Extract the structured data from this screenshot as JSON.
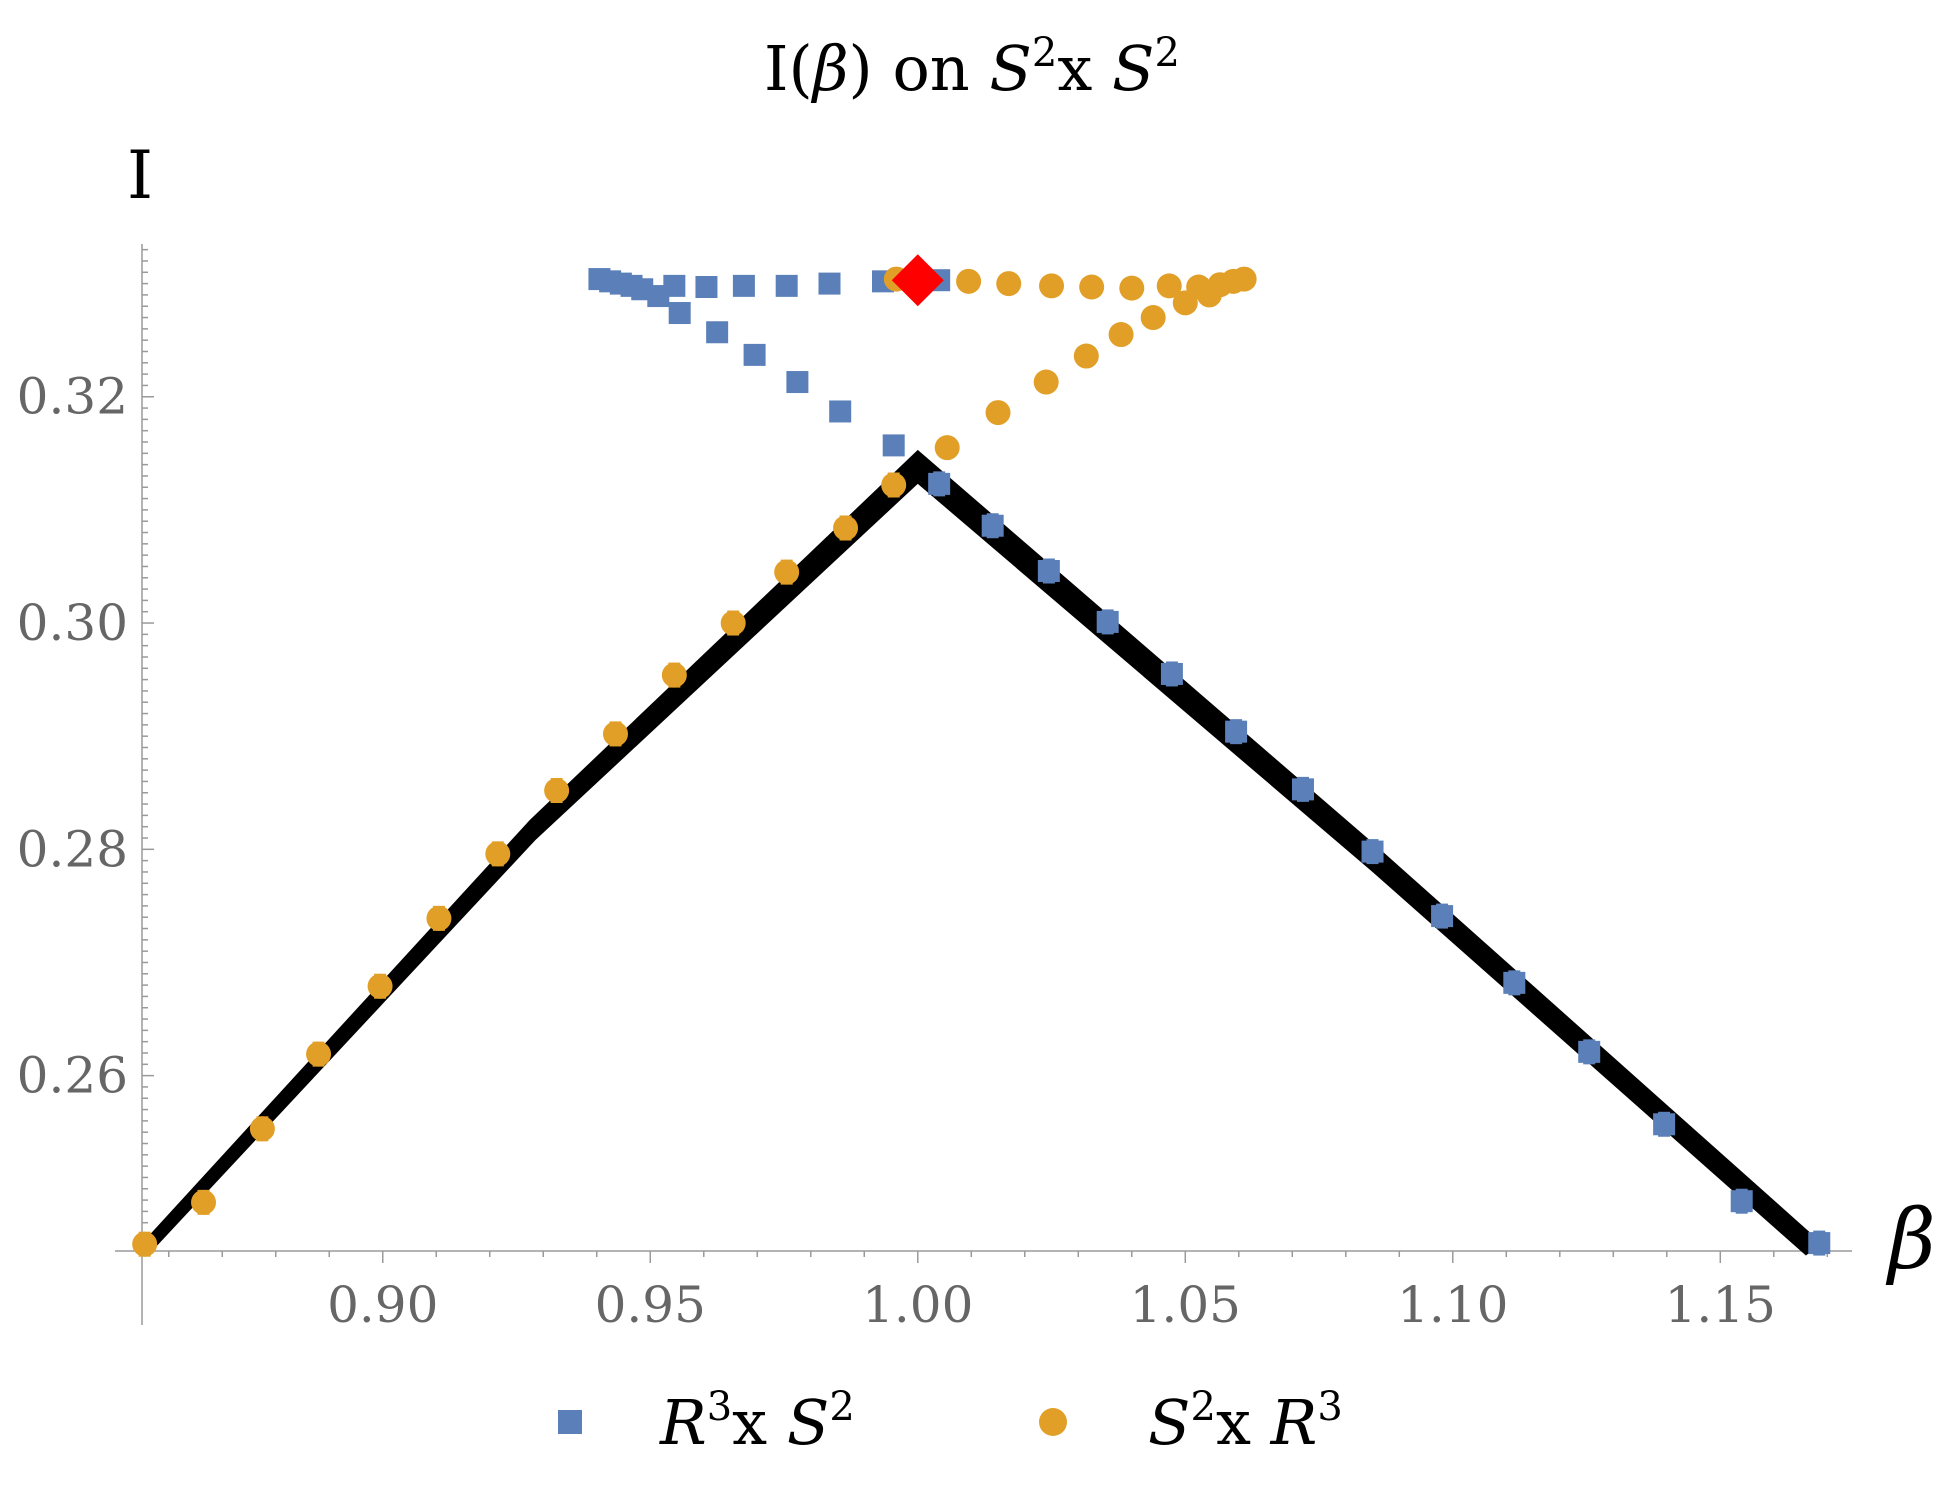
{
  "chart_data": {
    "type": "scatter",
    "title": {
      "prefix": "I(",
      "beta": "β",
      "mid": ") on ",
      "s1": "S",
      "sup1": "2",
      "x": "x ",
      "s2": "S",
      "sup2": "2"
    },
    "ylabel": "I",
    "xlabel": "β",
    "xlim": [
      0.855,
      1.172
    ],
    "ylim": [
      0.2445,
      0.3335
    ],
    "x_ticks": [
      "0.90",
      "0.95",
      "1.00",
      "1.05",
      "1.10",
      "1.15"
    ],
    "x_tick_values": [
      0.9,
      0.95,
      1.0,
      1.05,
      1.1,
      1.15
    ],
    "y_ticks": [
      "0.26",
      "0.28",
      "0.30",
      "0.32"
    ],
    "y_tick_values": [
      0.26,
      0.28,
      0.3,
      0.32
    ],
    "grid": false,
    "legend_position": "bottom",
    "colors": {
      "blue": "#5b80b9",
      "orange": "#e19f28",
      "red": "#ff0000",
      "curve": "#000000"
    },
    "series": [
      {
        "name": "R3 x S2",
        "legend": {
          "a": "R",
          "a_sup": "3",
          "x": "x ",
          "b": "S",
          "b_sup": "2"
        },
        "marker": "square",
        "color": "#5b80b9",
        "points": [
          {
            "x": 0.9405,
            "y": 0.3304
          },
          {
            "x": 0.9425,
            "y": 0.3302
          },
          {
            "x": 0.9445,
            "y": 0.33
          },
          {
            "x": 0.9465,
            "y": 0.3298
          },
          {
            "x": 0.9485,
            "y": 0.3295
          },
          {
            "x": 0.9515,
            "y": 0.3289
          },
          {
            "x": 0.9545,
            "y": 0.3298
          },
          {
            "x": 0.9555,
            "y": 0.3274
          },
          {
            "x": 0.9605,
            "y": 0.3297
          },
          {
            "x": 0.9625,
            "y": 0.3257
          },
          {
            "x": 0.9675,
            "y": 0.3298
          },
          {
            "x": 0.9695,
            "y": 0.3237
          },
          {
            "x": 0.9755,
            "y": 0.3298
          },
          {
            "x": 0.9775,
            "y": 0.3213
          },
          {
            "x": 0.9835,
            "y": 0.33
          },
          {
            "x": 0.9855,
            "y": 0.3187
          },
          {
            "x": 0.9935,
            "y": 0.3302
          },
          {
            "x": 0.9955,
            "y": 0.3157
          },
          {
            "x": 1.004,
            "y": 0.3303
          },
          {
            "x": 1.004,
            "y": 0.3123
          },
          {
            "x": 1.014,
            "y": 0.3086
          },
          {
            "x": 1.0245,
            "y": 0.3046
          },
          {
            "x": 1.0355,
            "y": 0.3001
          },
          {
            "x": 1.0475,
            "y": 0.2955
          },
          {
            "x": 1.0595,
            "y": 0.2904
          },
          {
            "x": 1.072,
            "y": 0.2853
          },
          {
            "x": 1.085,
            "y": 0.2798
          },
          {
            "x": 1.098,
            "y": 0.2741
          },
          {
            "x": 1.1115,
            "y": 0.2682
          },
          {
            "x": 1.1255,
            "y": 0.2621
          },
          {
            "x": 1.1395,
            "y": 0.2557
          },
          {
            "x": 1.154,
            "y": 0.2489
          },
          {
            "x": 1.1685,
            "y": 0.2452
          }
        ]
      },
      {
        "name": "S2 x R3",
        "legend": {
          "a": "S",
          "a_sup": "2",
          "x": "x ",
          "b": "R",
          "b_sup": "3"
        },
        "marker": "circle",
        "color": "#e19f28",
        "points": [
          {
            "x": 0.8555,
            "y": 0.2451
          },
          {
            "x": 0.8665,
            "y": 0.2488
          },
          {
            "x": 0.8775,
            "y": 0.2553
          },
          {
            "x": 0.888,
            "y": 0.2619
          },
          {
            "x": 0.8995,
            "y": 0.2679
          },
          {
            "x": 0.9105,
            "y": 0.2739
          },
          {
            "x": 0.9215,
            "y": 0.2796
          },
          {
            "x": 0.9325,
            "y": 0.2852
          },
          {
            "x": 0.9435,
            "y": 0.2902
          },
          {
            "x": 0.9545,
            "y": 0.2954
          },
          {
            "x": 0.9655,
            "y": 0.3
          },
          {
            "x": 0.9755,
            "y": 0.3045
          },
          {
            "x": 0.9865,
            "y": 0.3084
          },
          {
            "x": 0.9955,
            "y": 0.3122
          },
          {
            "x": 0.996,
            "y": 0.3304
          },
          {
            "x": 1.0055,
            "y": 0.3155
          },
          {
            "x": 1.0095,
            "y": 0.3302
          },
          {
            "x": 1.015,
            "y": 0.3186
          },
          {
            "x": 1.017,
            "y": 0.33
          },
          {
            "x": 1.024,
            "y": 0.3213
          },
          {
            "x": 1.025,
            "y": 0.3298
          },
          {
            "x": 1.0315,
            "y": 0.3236
          },
          {
            "x": 1.0325,
            "y": 0.3297
          },
          {
            "x": 1.038,
            "y": 0.3255
          },
          {
            "x": 1.04,
            "y": 0.3296
          },
          {
            "x": 1.044,
            "y": 0.327
          },
          {
            "x": 1.047,
            "y": 0.3298
          },
          {
            "x": 1.05,
            "y": 0.3283
          },
          {
            "x": 1.0525,
            "y": 0.3297
          },
          {
            "x": 1.0545,
            "y": 0.329
          },
          {
            "x": 1.0565,
            "y": 0.3299
          },
          {
            "x": 1.059,
            "y": 0.3302
          },
          {
            "x": 1.061,
            "y": 0.3304
          }
        ]
      }
    ],
    "special_point": {
      "marker": "diamond",
      "color": "#ff0000",
      "x": 1.0,
      "y": 0.3303
    },
    "curve": {
      "color": "#000000",
      "upper": [
        {
          "x": 0.855,
          "y": 0.2452
        },
        {
          "x": 0.9275,
          "y": 0.2826
        },
        {
          "x": 1.0,
          "y": 0.3153
        },
        {
          "x": 1.085,
          "y": 0.2806
        },
        {
          "x": 1.169,
          "y": 0.2452
        }
      ],
      "lower": [
        {
          "x": 0.8565,
          "y": 0.2443
        },
        {
          "x": 0.9285,
          "y": 0.2808
        },
        {
          "x": 1.0,
          "y": 0.3123
        },
        {
          "x": 1.085,
          "y": 0.278
        },
        {
          "x": 1.166,
          "y": 0.2441
        }
      ]
    }
  }
}
